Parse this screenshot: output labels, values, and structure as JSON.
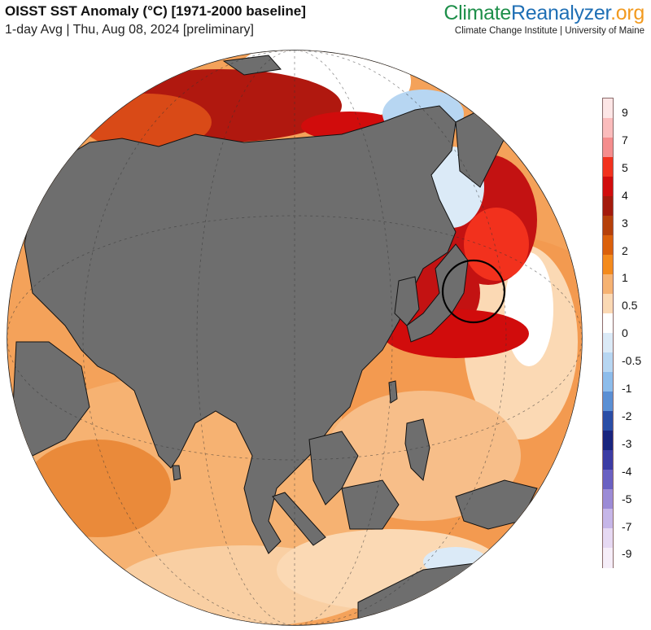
{
  "header": {
    "title": "OISST SST Anomaly (°C) [1971-2000 baseline]",
    "subtitle": "1-day Avg | Thu, Aug 08, 2024 [preliminary]"
  },
  "brand": {
    "part1": "Climate",
    "part2": "Reanalyzer",
    "part3": ".org",
    "institution": "Climate Change Institute | University of Maine",
    "colors": {
      "climate": "#1e8f4a",
      "reanalyzer": "#1f6fb5",
      "org": "#f29a1f"
    }
  },
  "map": {
    "projection": "orthographic",
    "center": "Asia / Western Pacific",
    "land_color": "#6e6e6e",
    "highlight": "circle around northern Japan"
  },
  "legend": {
    "labels": [
      "9",
      "7",
      "5",
      "4",
      "3",
      "2",
      "1",
      "0.5",
      "0",
      "-0.5",
      "-1",
      "-2",
      "-3",
      "-4",
      "-5",
      "-7",
      "-9"
    ],
    "colors": [
      "#fde6e6",
      "#fbbcbc",
      "#f58d8d",
      "#f2311d",
      "#d10c0c",
      "#a41a0c",
      "#b6400a",
      "#db600b",
      "#f48a1c",
      "#f6b272",
      "#fbd9b4",
      "#ffffff",
      "#dbeaf7",
      "#b7d6f2",
      "#8dbceb",
      "#5b8fd4",
      "#2a4da6",
      "#19247e",
      "#3c3ba4",
      "#6a60c2",
      "#9c8bd6",
      "#c6b6e8",
      "#e6d9f3",
      "#f6eef9"
    ]
  }
}
